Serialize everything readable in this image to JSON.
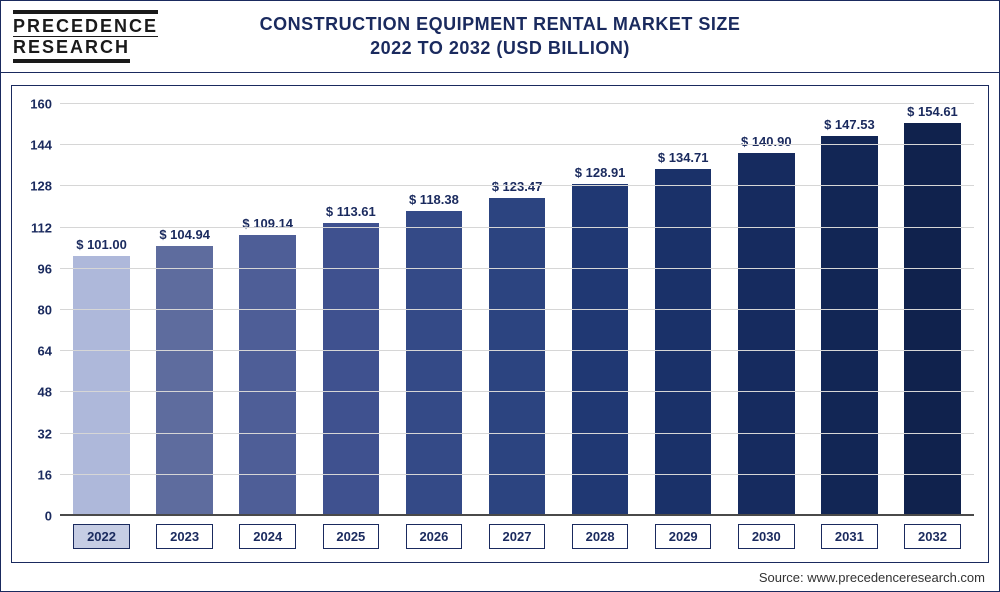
{
  "logo": {
    "line1": "PRECEDENCE",
    "line2": "RESEARCH"
  },
  "title": {
    "line1": "CONSTRUCTION EQUIPMENT RENTAL MARKET SIZE",
    "line2": "2022 TO 2032 (USD BILLION)"
  },
  "source": "Source: www.precedenceresearch.com",
  "chart": {
    "type": "bar",
    "background_color": "#ffffff",
    "grid_color": "#d6d6d6",
    "border_color": "#1a2a5e",
    "label_color": "#1a2a5e",
    "title_fontsize": 18,
    "label_fontsize": 13,
    "ylim": [
      0,
      160
    ],
    "ytick_step": 16,
    "yticks": [
      0,
      16,
      32,
      48,
      64,
      80,
      96,
      112,
      128,
      144,
      160
    ],
    "categories": [
      "2022",
      "2023",
      "2024",
      "2025",
      "2026",
      "2027",
      "2028",
      "2029",
      "2030",
      "2031",
      "2032"
    ],
    "values": [
      101.0,
      104.94,
      109.14,
      113.61,
      118.38,
      123.47,
      128.91,
      134.71,
      140.9,
      147.53,
      154.61
    ],
    "value_labels": [
      "$ 101.00",
      "$ 104.94",
      "$ 109.14",
      "$ 113.61",
      "$ 118.38",
      "$ 123.47",
      "$ 128.91",
      "$ 134.71",
      "$ 140.90",
      "$ 147.53",
      "$ 154.61"
    ],
    "bar_colors": [
      "#aeb8da",
      "#5e6c9e",
      "#4e5e97",
      "#3f518f",
      "#344a87",
      "#2c4480",
      "#203873",
      "#1a3169",
      "#162b5f",
      "#122655",
      "#10224d"
    ],
    "bar_width": 0.68,
    "highlighted_category_index": 0
  }
}
